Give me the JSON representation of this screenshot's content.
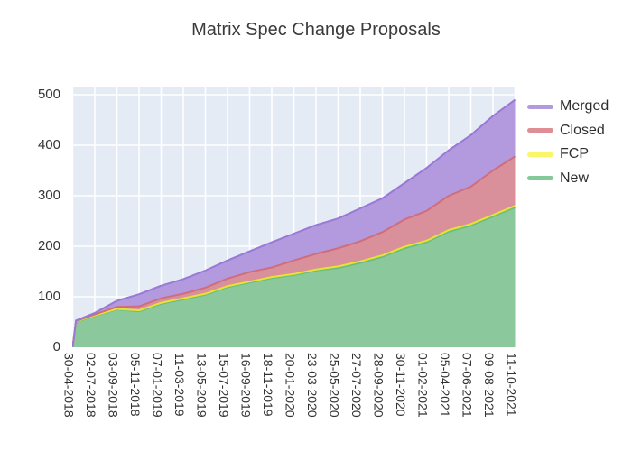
{
  "title": "Matrix Spec Change Proposals",
  "chart_data": {
    "type": "area",
    "stacked": true,
    "title": "Matrix Spec Change Proposals",
    "background_color": "#e5ebf5",
    "grid_color": "#ffffff",
    "tick_color": "#333333",
    "title_color": "#3b3b3b",
    "legend_position": "outside-top-right",
    "grid": true,
    "ylim": [
      0,
      500
    ],
    "yticks": [
      0,
      100,
      200,
      300,
      400,
      500
    ],
    "xtick_labels": [
      "30-04-2018",
      "02-07-2018",
      "03-09-2018",
      "05-11-2018",
      "07-01-2019",
      "11-03-2019",
      "13-05-2019",
      "15-07-2019",
      "16-09-2019",
      "18-11-2019",
      "20-01-2020",
      "23-03-2020",
      "25-05-2020",
      "27-07-2020",
      "28-09-2020",
      "30-11-2020",
      "01-02-2021",
      "05-04-2021",
      "07-06-2021",
      "09-08-2021",
      "11-10-2021"
    ],
    "x_positions": [
      0,
      0.15,
      1,
      2,
      3,
      4,
      5,
      6,
      7,
      8,
      9,
      10,
      11,
      12,
      13,
      14,
      15,
      16,
      17,
      18,
      19,
      20
    ],
    "stack_order_bottom_to_top": [
      "New",
      "FCP",
      "Closed",
      "Merged"
    ],
    "series": [
      {
        "name": "Merged",
        "values": [
          0,
          1,
          3,
          12,
          24,
          25,
          29,
          34,
          36,
          41,
          50,
          53,
          57,
          59,
          65,
          67,
          72,
          85,
          90,
          102,
          108,
          112
        ],
        "line_color": "#9879d6",
        "fill_color": "#b39ade",
        "swatch_color": "#b29ade"
      },
      {
        "name": "Closed",
        "values": [
          0,
          1,
          2,
          4,
          8,
          9,
          9,
          12,
          15,
          19,
          19,
          27,
          31,
          36,
          40,
          46,
          54,
          59,
          68,
          74,
          88,
          98
        ],
        "line_color": "#d06d7d",
        "fill_color": "#d9909b",
        "swatch_color": "#df8e96"
      },
      {
        "name": "FCP",
        "values": [
          0,
          1,
          1,
          1,
          2,
          2,
          2,
          2,
          2,
          2,
          2,
          2,
          2,
          3,
          3,
          3,
          3,
          3,
          3,
          3,
          3,
          3
        ],
        "line_color": "#e8e232",
        "fill_color": "#f0ec55",
        "swatch_color": "#f9f768"
      },
      {
        "name": "New",
        "values": [
          0,
          50,
          62,
          75,
          71,
          86,
          95,
          104,
          119,
          128,
          137,
          143,
          152,
          157,
          167,
          179,
          196,
          208,
          229,
          241,
          259,
          277
        ],
        "line_color": "#67bd83",
        "fill_color": "#8bc99d",
        "swatch_color": "#85c998"
      }
    ]
  }
}
